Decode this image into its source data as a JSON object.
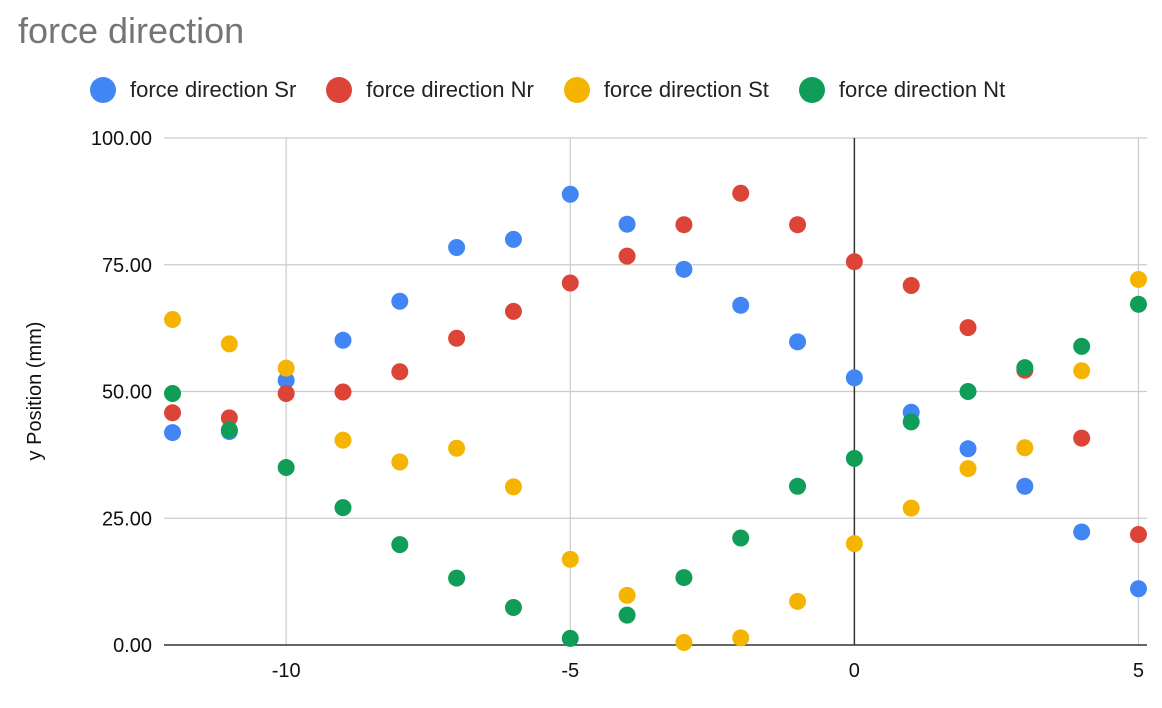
{
  "chart_data": {
    "type": "scatter",
    "title": "force direction",
    "xlabel": "",
    "ylabel": "y Position (mm)",
    "xlim": [
      -12.15,
      5.15
    ],
    "ylim": [
      0,
      100
    ],
    "x_ticks": [
      -10,
      -5,
      0,
      5
    ],
    "y_ticks": [
      0,
      25,
      50,
      75,
      100
    ],
    "y_tick_labels": [
      "0.00",
      "25.00",
      "50.00",
      "75.00",
      "100.00"
    ],
    "grid": true,
    "legend_position": "top",
    "series": [
      {
        "name": "force direction Sr",
        "color": "#4285f4",
        "points": [
          [
            -12,
            41.9
          ],
          [
            -11,
            42.1
          ],
          [
            -10,
            52.2
          ],
          [
            -9,
            60.1
          ],
          [
            -8,
            67.8
          ],
          [
            -7,
            78.4
          ],
          [
            -6,
            80.0
          ],
          [
            -5,
            88.9
          ],
          [
            -4,
            83.0
          ],
          [
            -3,
            74.1
          ],
          [
            -2,
            67.0
          ],
          [
            -1,
            59.8
          ],
          [
            0,
            52.7
          ],
          [
            1,
            45.9
          ],
          [
            2,
            38.7
          ],
          [
            3,
            31.3
          ],
          [
            4,
            22.3
          ],
          [
            5,
            11.1
          ]
        ]
      },
      {
        "name": "force direction Nr",
        "color": "#db4437",
        "points": [
          [
            -12,
            45.8
          ],
          [
            -11,
            44.8
          ],
          [
            -10,
            49.6
          ],
          [
            -9,
            49.9
          ],
          [
            -8,
            53.9
          ],
          [
            -7,
            60.5
          ],
          [
            -6,
            65.8
          ],
          [
            -5,
            71.4
          ],
          [
            -4,
            76.7
          ],
          [
            -3,
            82.9
          ],
          [
            -2,
            89.1
          ],
          [
            -1,
            82.9
          ],
          [
            0,
            75.6
          ],
          [
            1,
            70.9
          ],
          [
            2,
            62.6
          ],
          [
            3,
            54.2
          ],
          [
            4,
            40.8
          ],
          [
            5,
            21.8
          ]
        ]
      },
      {
        "name": "force direction St",
        "color": "#f4b400",
        "points": [
          [
            -12,
            64.2
          ],
          [
            -11,
            59.4
          ],
          [
            -10,
            54.6
          ],
          [
            -9,
            40.4
          ],
          [
            -8,
            36.1
          ],
          [
            -7,
            38.8
          ],
          [
            -6,
            31.2
          ],
          [
            -5,
            16.9
          ],
          [
            -4,
            9.8
          ],
          [
            -3,
            0.5
          ],
          [
            -2,
            1.4
          ],
          [
            -1,
            8.6
          ],
          [
            0,
            20.0
          ],
          [
            1,
            27.0
          ],
          [
            2,
            34.8
          ],
          [
            3,
            38.9
          ],
          [
            4,
            54.1
          ],
          [
            5,
            72.1
          ]
        ]
      },
      {
        "name": "force direction Nt",
        "color": "#0f9d58",
        "points": [
          [
            -12,
            49.6
          ],
          [
            -11,
            42.4
          ],
          [
            -10,
            35.0
          ],
          [
            -9,
            27.1
          ],
          [
            -8,
            19.8
          ],
          [
            -7,
            13.2
          ],
          [
            -6,
            7.4
          ],
          [
            -5,
            1.3
          ],
          [
            -4,
            5.9
          ],
          [
            -3,
            13.3
          ],
          [
            -2,
            21.1
          ],
          [
            -1,
            31.3
          ],
          [
            0,
            36.8
          ],
          [
            1,
            44.0
          ],
          [
            2,
            50.0
          ],
          [
            3,
            54.7
          ],
          [
            4,
            58.9
          ],
          [
            5,
            67.2
          ]
        ]
      }
    ]
  }
}
